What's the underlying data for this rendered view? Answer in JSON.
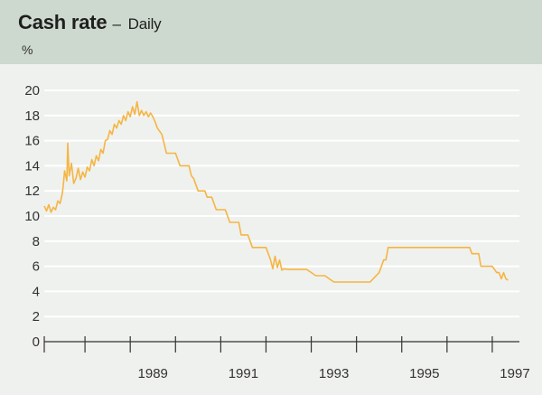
{
  "header": {
    "title": "Cash rate",
    "dash": "–",
    "subtitle": "Daily",
    "unit": "%"
  },
  "chart_data": {
    "type": "line",
    "title": "Cash rate",
    "subtitle": "Daily",
    "ylabel": "%",
    "xlabel": "",
    "xlim": [
      1987.1,
      1997.6
    ],
    "ylim": [
      0,
      20
    ],
    "yticks": [
      0,
      2,
      4,
      6,
      8,
      10,
      12,
      14,
      16,
      18,
      20
    ],
    "xtick_labels": [
      "1989",
      "1991",
      "1993",
      "1995",
      "1997"
    ],
    "grid": true,
    "line_color": "#f5b544",
    "series": [
      {
        "x": [
          1987.1,
          1987.15,
          1987.2,
          1987.25,
          1987.3,
          1987.35,
          1987.4,
          1987.45,
          1987.5,
          1987.52,
          1987.55,
          1987.6,
          1987.62,
          1987.65,
          1987.7,
          1987.75,
          1987.8,
          1987.85,
          1987.9,
          1987.95,
          1988.0,
          1988.05,
          1988.1,
          1988.15,
          1988.2,
          1988.25,
          1988.3,
          1988.35,
          1988.4,
          1988.45,
          1988.5,
          1988.55,
          1988.6,
          1988.65,
          1988.7,
          1988.75,
          1988.8,
          1988.85,
          1988.9,
          1988.95,
          1989.0,
          1989.05,
          1989.1,
          1989.15,
          1989.2,
          1989.25,
          1989.3,
          1989.35,
          1989.4,
          1989.45,
          1989.5,
          1989.55,
          1989.6,
          1989.7,
          1989.8,
          1989.9,
          1989.95,
          1990.0,
          1990.1,
          1990.2,
          1990.3,
          1990.35,
          1990.4,
          1990.5,
          1990.6,
          1990.65,
          1990.7,
          1990.8,
          1990.9,
          1991.0,
          1991.1,
          1991.2,
          1991.3,
          1991.4,
          1991.45,
          1991.5,
          1991.6,
          1991.7,
          1991.75,
          1991.8,
          1991.9,
          1992.0,
          1992.1,
          1992.15,
          1992.2,
          1992.25,
          1992.3,
          1992.35,
          1992.4,
          1992.5,
          1992.7,
          1992.9,
          1993.1,
          1993.3,
          1993.5,
          1993.7,
          1993.9,
          1994.1,
          1994.3,
          1994.5,
          1994.6,
          1994.65,
          1994.7,
          1994.8,
          1995.0,
          1995.3,
          1995.6,
          1995.9,
          1996.2,
          1996.4,
          1996.5,
          1996.55,
          1996.6,
          1996.7,
          1996.75,
          1996.9,
          1997.0,
          1997.1,
          1997.15,
          1997.2,
          1997.25,
          1997.3,
          1997.35
        ],
        "y": [
          10.8,
          10.4,
          10.9,
          10.3,
          10.7,
          10.5,
          11.2,
          11.0,
          11.8,
          12.4,
          13.6,
          12.8,
          15.8,
          13.2,
          14.2,
          12.6,
          13.0,
          13.8,
          12.9,
          13.5,
          13.1,
          13.9,
          13.6,
          14.5,
          14.0,
          14.8,
          14.4,
          15.3,
          15.0,
          16.0,
          16.1,
          16.8,
          16.5,
          17.3,
          17.0,
          17.6,
          17.3,
          18.0,
          17.6,
          18.3,
          17.9,
          18.7,
          18.1,
          19.1,
          18.0,
          18.4,
          18.0,
          18.3,
          17.9,
          18.2,
          17.9,
          17.5,
          17.0,
          16.5,
          15.0,
          15.0,
          15.0,
          15.0,
          14.0,
          14.0,
          14.0,
          13.2,
          13.0,
          12.0,
          12.0,
          12.0,
          11.5,
          11.5,
          10.5,
          10.5,
          10.5,
          9.5,
          9.5,
          9.5,
          8.5,
          8.5,
          8.5,
          7.5,
          7.5,
          7.5,
          7.5,
          7.5,
          6.5,
          5.8,
          6.8,
          5.9,
          6.5,
          5.7,
          5.8,
          5.75,
          5.75,
          5.75,
          5.25,
          5.25,
          4.75,
          4.75,
          4.75,
          4.75,
          4.75,
          5.5,
          6.5,
          6.5,
          7.5,
          7.5,
          7.5,
          7.5,
          7.5,
          7.5,
          7.5,
          7.5,
          7.5,
          7.0,
          7.0,
          7.0,
          6.0,
          6.0,
          6.0,
          5.5,
          5.5,
          5.0,
          5.5,
          5.0,
          4.9
        ]
      }
    ]
  }
}
